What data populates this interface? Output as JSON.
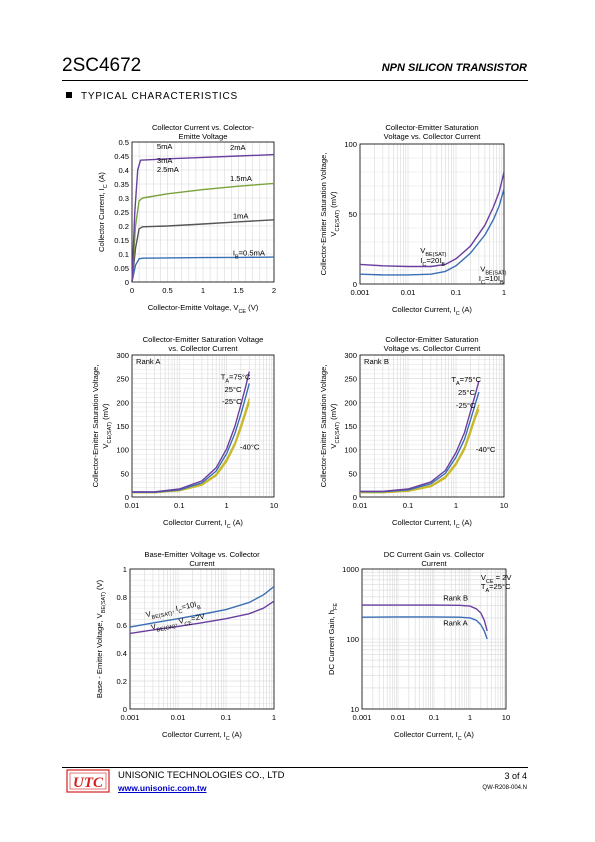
{
  "header": {
    "part_number": "2SC4672",
    "doc_type": "NPN SILICON TRANSISTOR"
  },
  "section": {
    "title": "TYPICAL CHARACTERISTICS"
  },
  "footer": {
    "logo_text": "UTC",
    "company": "UNISONIC TECHNOLOGIES CO., LTD",
    "website": "www.unisonic.com.tw",
    "page": "3  of  4",
    "doc_number": "QW-R208-004.N"
  },
  "colors": {
    "blue": "#3a6fb5",
    "purple": "#6a3fa0",
    "green": "#7aa23a",
    "dark_gray": "#555555",
    "yellow": "#c8b82a",
    "grid": "#d9d9d9",
    "logo_red": "#d42020"
  },
  "chart_data": [
    {
      "id": "c1",
      "type": "line",
      "title": [
        "Collector Current vs. Colector-",
        "Emitte  Voltage"
      ],
      "xlabel": "Collector-Emitte  Voltage, V",
      "xlabel_sub": "CE",
      "xlabel_tail": " (V)",
      "ylabel": "Collector Current, I",
      "ylabel_sub": "C",
      "ylabel_tail": " (A)",
      "x_scale": "linear",
      "y_scale": "linear",
      "xlim": [
        0,
        2
      ],
      "ylim": [
        0,
        0.5
      ],
      "xticks": [
        0,
        0.5,
        1,
        1.5,
        2
      ],
      "xtick_labels": [
        "0",
        "0.5",
        "1",
        "1.5",
        "2"
      ],
      "yticks": [
        0,
        0.05,
        0.1,
        0.15,
        0.2,
        0.25,
        0.3,
        0.35,
        0.4,
        0.45,
        0.5
      ],
      "ytick_labels": [
        "0",
        "0.05",
        "0.1",
        "0.15",
        "0.2",
        "0.25",
        "0.3",
        "0.35",
        "0.4",
        "0.45",
        "0.5"
      ],
      "grid": true,
      "series": [
        {
          "color": "#3a6fb5",
          "x": [
            0,
            0.05,
            0.1,
            0.15,
            0.5,
            1,
            1.5,
            2
          ],
          "y": [
            0,
            0.06,
            0.083,
            0.085,
            0.086,
            0.087,
            0.088,
            0.089
          ]
        },
        {
          "color": "#555555",
          "x": [
            0,
            0.05,
            0.1,
            0.15,
            0.5,
            1,
            1.5,
            2
          ],
          "y": [
            0,
            0.12,
            0.19,
            0.197,
            0.2,
            0.207,
            0.215,
            0.222
          ]
        },
        {
          "color": "#7aa23a",
          "x": [
            0,
            0.05,
            0.1,
            0.15,
            0.5,
            1,
            1.5,
            2
          ],
          "y": [
            0,
            0.2,
            0.29,
            0.3,
            0.315,
            0.33,
            0.342,
            0.352
          ]
        },
        {
          "color": "#6a3fa0",
          "x": [
            0,
            0.04,
            0.08,
            0.12,
            0.5,
            1,
            1.5,
            2
          ],
          "y": [
            0,
            0.25,
            0.4,
            0.435,
            0.44,
            0.445,
            0.45,
            0.455
          ]
        }
      ],
      "annotations": [
        {
          "text": "5mA",
          "x": 0.35,
          "y": 0.475
        },
        {
          "text": "3mA",
          "x": 0.35,
          "y": 0.425
        },
        {
          "text": "2.5mA",
          "x": 0.35,
          "y": 0.393
        },
        {
          "text": "2mA",
          "x": 1.38,
          "y": 0.472
        },
        {
          "text": "1.5mA",
          "x": 1.38,
          "y": 0.36
        },
        {
          "text": "1mA",
          "x": 1.42,
          "y": 0.227
        },
        {
          "text": "I",
          "sub": "B",
          "tail": "=0.5mA",
          "x": 1.42,
          "y": 0.095
        }
      ]
    },
    {
      "id": "c2",
      "type": "line",
      "title": [
        "Collector-Emitter Saturation",
        "Voltage vs. Collector Current"
      ],
      "xlabel": "Collector Current, I",
      "xlabel_sub": "C",
      "xlabel_tail": " (A)",
      "ylabel": "Collector-Emitter Saturation Voltage,",
      "ylabel2": "V",
      "ylabel2_sub": "CE(SAT)",
      "ylabel2_tail": " (mV)",
      "x_scale": "log",
      "y_scale": "linear",
      "xlim": [
        0.001,
        1
      ],
      "ylim": [
        0,
        100
      ],
      "xticks": [
        0.001,
        0.01,
        0.1,
        1
      ],
      "xtick_labels": [
        "0.001",
        "0.01",
        "0.1",
        "1"
      ],
      "yticks": [
        0,
        50,
        100
      ],
      "ytick_labels": [
        "0",
        "50",
        "100"
      ],
      "grid": true,
      "series": [
        {
          "color": "#6a3fa0",
          "x": [
            0.001,
            0.003,
            0.01,
            0.03,
            0.06,
            0.1,
            0.2,
            0.4,
            0.6,
            0.8,
            1
          ],
          "y": [
            14,
            13,
            12.5,
            12.5,
            14,
            18,
            27,
            42,
            55,
            66,
            80
          ]
        },
        {
          "color": "#3a6fb5",
          "x": [
            0.001,
            0.003,
            0.01,
            0.03,
            0.06,
            0.1,
            0.2,
            0.4,
            0.6,
            0.8,
            1
          ],
          "y": [
            7,
            6.5,
            6.5,
            7,
            9,
            13,
            22,
            35,
            46,
            56,
            68
          ]
        }
      ],
      "annotations": [
        {
          "text": "V",
          "sub": "BE(SAT)",
          "tail": "",
          "x": 0.018,
          "y": 22
        },
        {
          "text": "I",
          "sub": "C",
          "tail": "=20I",
          "sub2": "B",
          "x": 0.018,
          "y": 15
        },
        {
          "text": "V",
          "sub": "BE(SAT)",
          "tail": "",
          "x": 0.32,
          "y": 9
        },
        {
          "text": "I",
          "sub": "C",
          "tail": "=10I",
          "sub2": "B",
          "x": 0.3,
          "y": 2
        }
      ]
    },
    {
      "id": "c3",
      "type": "line",
      "title": [
        "Collector-Emitter Saturation Voltage",
        "vs. Collector Current"
      ],
      "legend_text": "Rank A",
      "xlabel": "Collector Current, I",
      "xlabel_sub": "C",
      "xlabel_tail": " (A)",
      "ylabel": "Collector-Emitter Saturation Voltage,",
      "ylabel2": "V",
      "ylabel2_sub": "CE(SAT)",
      "ylabel2_tail": " (mV)",
      "x_scale": "log",
      "y_scale": "linear",
      "xlim": [
        0.01,
        10
      ],
      "ylim": [
        0,
        300
      ],
      "xticks": [
        0.01,
        0.1,
        1,
        10
      ],
      "xtick_labels": [
        "0.01",
        "0.1",
        "1",
        "10"
      ],
      "yticks": [
        0,
        50,
        100,
        150,
        200,
        250,
        300
      ],
      "ytick_labels": [
        "0",
        "50",
        "100",
        "150",
        "200",
        "250",
        "300"
      ],
      "grid": true,
      "series": [
        {
          "color": "#c8b82a",
          "x": [
            0.01,
            0.03,
            0.1,
            0.3,
            0.6,
            1,
            1.5,
            2,
            2.5,
            3
          ],
          "y": [
            9,
            9,
            13,
            25,
            45,
            75,
            110,
            145,
            175,
            200
          ]
        },
        {
          "color": "#c8b82a",
          "x": [
            0.01,
            0.03,
            0.1,
            0.3,
            0.6,
            1,
            1.5,
            2,
            2.5,
            3
          ],
          "y": [
            9,
            9,
            14,
            27,
            48,
            80,
            115,
            152,
            182,
            208
          ]
        },
        {
          "color": "#3a6fb5",
          "x": [
            0.01,
            0.03,
            0.1,
            0.3,
            0.6,
            1,
            1.5,
            2,
            2.5,
            3
          ],
          "y": [
            10,
            10,
            15,
            30,
            55,
            92,
            135,
            175,
            210,
            240
          ]
        },
        {
          "color": "#6a3fa0",
          "x": [
            0.01,
            0.03,
            0.1,
            0.3,
            0.6,
            1,
            1.5,
            2,
            2.5,
            3
          ],
          "y": [
            11,
            11,
            17,
            34,
            62,
            102,
            150,
            195,
            232,
            265
          ]
        }
      ],
      "annotations": [
        {
          "text": "T",
          "sub": "A",
          "tail": "=75°C",
          "x": 0.75,
          "y": 248
        },
        {
          "text": "25°C",
          "x": 0.9,
          "y": 222
        },
        {
          "text": "-25°C",
          "x": 0.8,
          "y": 196
        },
        {
          "text": "-40°C",
          "x": 1.9,
          "y": 100
        }
      ]
    },
    {
      "id": "c4",
      "type": "line",
      "title": [
        "Collector-Emitter Saturation",
        "Voltage vs. Collector Current"
      ],
      "legend_text": "Rank B",
      "xlabel": "Collector Current, I",
      "xlabel_sub": "C",
      "xlabel_tail": " (A)",
      "ylabel": "Collector-Emitter Saturation Voltage,",
      "ylabel2": "V",
      "ylabel2_sub": "CE(SAT)",
      "ylabel2_tail": " (mV)",
      "x_scale": "log",
      "y_scale": "linear",
      "xlim": [
        0.01,
        10
      ],
      "ylim": [
        0,
        300
      ],
      "xticks": [
        0.01,
        0.1,
        1,
        10
      ],
      "xtick_labels": [
        "0.01",
        "0.1",
        "1",
        "10"
      ],
      "yticks": [
        0,
        50,
        100,
        150,
        200,
        250,
        300
      ],
      "ytick_labels": [
        "0",
        "50",
        "100",
        "150",
        "200",
        "250",
        "300"
      ],
      "grid": true,
      "series": [
        {
          "color": "#c8b82a",
          "x": [
            0.01,
            0.03,
            0.1,
            0.3,
            0.6,
            1,
            1.5,
            2,
            2.5,
            3
          ],
          "y": [
            9,
            9,
            12,
            22,
            40,
            68,
            100,
            135,
            165,
            185
          ]
        },
        {
          "color": "#c8b82a",
          "x": [
            0.01,
            0.03,
            0.1,
            0.3,
            0.6,
            1,
            1.5,
            2,
            2.5,
            3
          ],
          "y": [
            10,
            10,
            13,
            24,
            43,
            72,
            105,
            142,
            172,
            195
          ]
        },
        {
          "color": "#3a6fb5",
          "x": [
            0.01,
            0.03,
            0.1,
            0.3,
            0.6,
            1,
            1.5,
            2,
            2.5,
            3
          ],
          "y": [
            11,
            11,
            15,
            28,
            50,
            84,
            122,
            162,
            195,
            222
          ]
        },
        {
          "color": "#6a3fa0",
          "x": [
            0.01,
            0.03,
            0.1,
            0.3,
            0.6,
            1,
            1.5,
            2,
            2.5,
            3
          ],
          "y": [
            12,
            12,
            17,
            32,
            56,
            94,
            136,
            180,
            215,
            245
          ]
        }
      ],
      "annotations": [
        {
          "text": "T",
          "sub": "A",
          "tail": "=75°C",
          "x": 0.8,
          "y": 243
        },
        {
          "text": "25°C",
          "x": 1.1,
          "y": 216
        },
        {
          "text": "-25°C",
          "x": 1.0,
          "y": 188
        },
        {
          "text": "-40°C",
          "x": 2.6,
          "y": 95
        }
      ]
    },
    {
      "id": "c5",
      "type": "line",
      "title": [
        "Base-Emitter Voltage vs. Collector",
        "Current"
      ],
      "xlabel": "Collector Current, I",
      "xlabel_sub": "C",
      "xlabel_tail": " (A)",
      "ylabel": "Base - Emitter Voltage, V",
      "ylabel_sub": "BE(SAT)",
      "ylabel_tail": " (V)",
      "x_scale": "log",
      "y_scale": "linear",
      "xlim": [
        0.001,
        1
      ],
      "ylim": [
        0,
        1
      ],
      "xticks": [
        0.001,
        0.01,
        0.1,
        1
      ],
      "xtick_labels": [
        "0.001",
        "0.01",
        "0.1",
        "1"
      ],
      "yticks": [
        0,
        0.2,
        0.4,
        0.6,
        0.8,
        1
      ],
      "ytick_labels": [
        "0",
        "0.2",
        "0.4",
        "0.6",
        "0.8",
        "1"
      ],
      "grid": true,
      "series": [
        {
          "color": "#3a6fb5",
          "x": [
            0.001,
            0.003,
            0.01,
            0.03,
            0.1,
            0.3,
            0.6,
            1
          ],
          "y": [
            0.585,
            0.615,
            0.645,
            0.675,
            0.71,
            0.76,
            0.815,
            0.875
          ]
        },
        {
          "color": "#6a3fa0",
          "x": [
            0.001,
            0.003,
            0.01,
            0.03,
            0.1,
            0.3,
            0.6,
            1
          ],
          "y": [
            0.54,
            0.565,
            0.59,
            0.615,
            0.645,
            0.68,
            0.72,
            0.77
          ]
        }
      ],
      "annotations": [
        {
          "text": "V",
          "sub": "BE(SAT)",
          "tail": ", I",
          "sub2": "C",
          "tail2": "=10I",
          "sub3": "B",
          "x": 0.0022,
          "y": 0.655,
          "rotate": -12
        },
        {
          "text": "V",
          "sub": "BE(ON)",
          "tail": ", V",
          "sub2": "CE",
          "tail2": "=2V",
          "x": 0.0028,
          "y": 0.565,
          "rotate": -12
        }
      ]
    },
    {
      "id": "c6",
      "type": "line",
      "title": [
        "DC Current Gain vs. Collector",
        "Current"
      ],
      "xlabel": "Collector Current, I",
      "xlabel_sub": "C",
      "xlabel_tail": " (A)",
      "ylabel": "DC Current Gain, h",
      "ylabel_sub": "FE",
      "ylabel_tail": "",
      "x_scale": "log",
      "y_scale": "log",
      "xlim": [
        0.001,
        10
      ],
      "ylim": [
        10,
        1000
      ],
      "xticks": [
        0.001,
        0.01,
        0.1,
        1,
        10
      ],
      "xtick_labels": [
        "0.001",
        "0.01",
        "0.1",
        "1",
        "10"
      ],
      "yticks": [
        10,
        100,
        1000
      ],
      "ytick_labels": [
        "10",
        "100",
        "1000"
      ],
      "grid": true,
      "series": [
        {
          "color": "#6a3fa0",
          "x": [
            0.001,
            0.01,
            0.1,
            0.5,
            1,
            1.5,
            2,
            2.5,
            3
          ],
          "y": [
            305,
            305,
            305,
            303,
            295,
            270,
            235,
            185,
            130
          ]
        },
        {
          "color": "#3a6fb5",
          "x": [
            0.001,
            0.01,
            0.1,
            0.5,
            1,
            1.5,
            2,
            2.5,
            3
          ],
          "y": [
            205,
            207,
            207,
            205,
            200,
            185,
            160,
            130,
            100
          ]
        }
      ],
      "annotations": [
        {
          "text": "V",
          "sub": "CE",
          "tail": " = 2V",
          "x": 2.0,
          "y": 700
        },
        {
          "text": "T",
          "sub": "A",
          "tail": "=25°C",
          "x": 2.0,
          "y": 520
        },
        {
          "text": "Rank B",
          "x": 0.18,
          "y": 355
        },
        {
          "text": "Rank A",
          "x": 0.18,
          "y": 155
        }
      ]
    }
  ]
}
